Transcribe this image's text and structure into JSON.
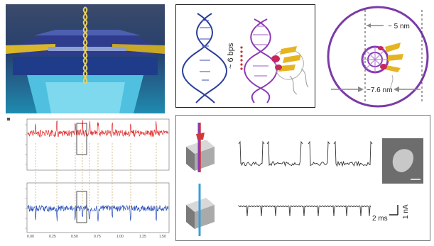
{
  "structure_panel": {
    "spacing_label": "~ 6 bps"
  },
  "pore_panel": {
    "inner_label": "~ 5 nm",
    "outer_label": "~7.6 nm"
  },
  "current_panel": {
    "tick_labels_x": [
      "0.00",
      "0.25",
      "0.50",
      "0.75",
      "1.00",
      "1.25",
      "1.50"
    ]
  },
  "traces_panel": {
    "scale_time": "2 ms",
    "scale_current": "1 nA"
  },
  "colors": {
    "dna_blue": "#2c3f9a",
    "dna_purple": "#8a3ab5",
    "protein_yellow": "#e6b422",
    "protein_red": "#c8265c",
    "ionic_red": "#e03030",
    "graphene_blue": "#2a4fb8",
    "pore_cyan": "#4ab0d8"
  }
}
